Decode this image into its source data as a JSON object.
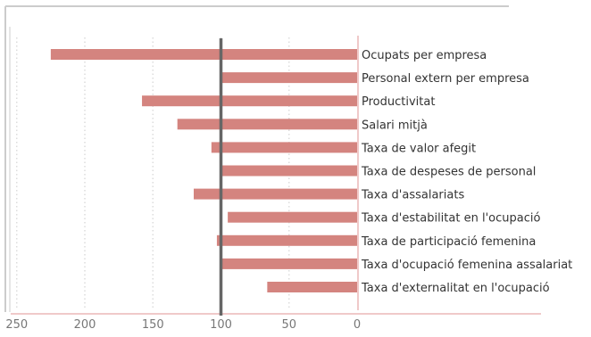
{
  "chart_data": {
    "type": "bar",
    "orientation": "horizontal",
    "categories": [
      "Ocupats per empresa",
      "Personal extern per empresa",
      "Productivitat",
      "Salari mitjà",
      "Taxa de valor afegit",
      "Taxa de despeses de personal",
      "Taxa d'assalariats",
      "Taxa d'estabilitat en l'ocupació",
      "Taxa de participació femenina",
      "Taxa d'ocupació femenina assalariat",
      "Taxa d'externalitat en l'ocupació"
    ],
    "values": [
      225,
      100,
      158,
      132,
      107,
      100,
      120,
      95,
      103,
      100,
      66
    ],
    "reference_value": 100,
    "xlim": [
      0,
      250
    ],
    "x_reversed": true,
    "x_ticks": [
      "250",
      "200",
      "150",
      "100",
      "50",
      "0"
    ],
    "x_tick_values": [
      250,
      200,
      150,
      100,
      50,
      0
    ],
    "grid": "vertical-dotted",
    "bar_color": "#d4847f",
    "reference_line_color": "#666666",
    "axis_color": "#f0c9c9"
  }
}
